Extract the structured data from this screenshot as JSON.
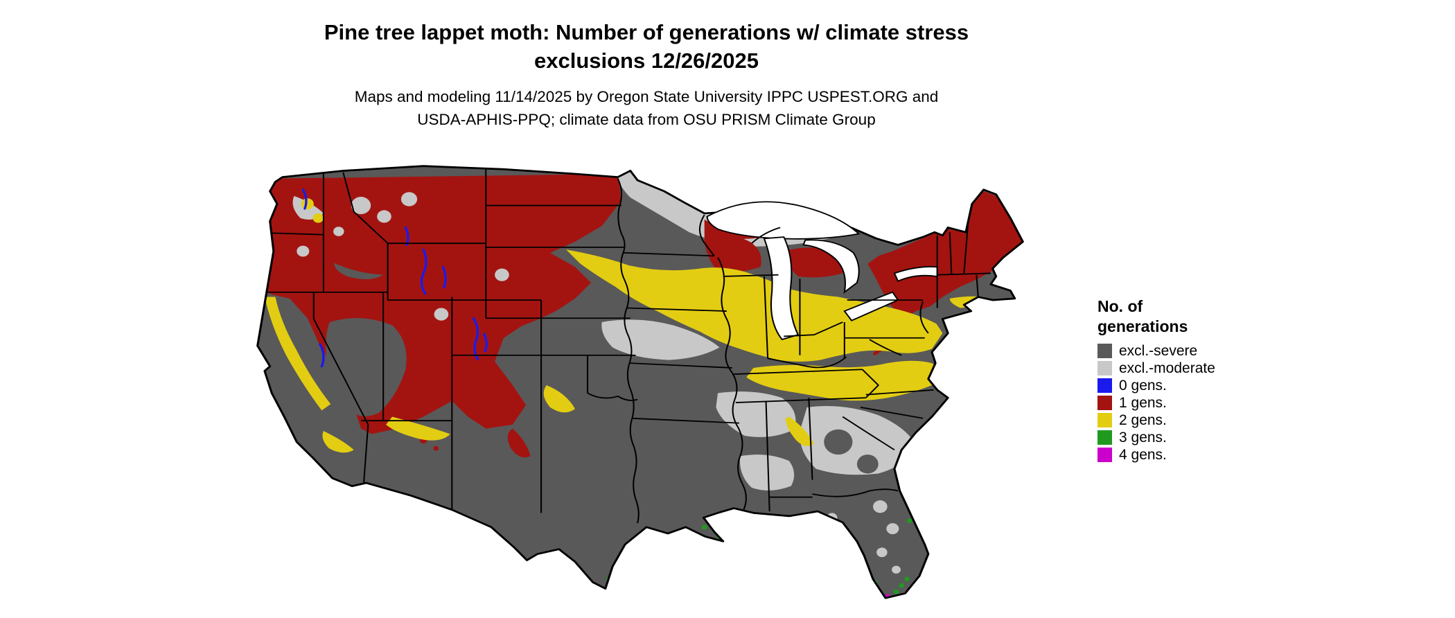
{
  "header": {
    "title_line1": "Pine tree lappet moth: Number of generations w/ climate stress",
    "title_line2": "exclusions 12/26/2025",
    "subtitle_line1": "Maps and modeling 11/14/2025 by Oregon State University IPPC USPEST.ORG and",
    "subtitle_line2": "USDA-APHIS-PPQ; climate data from OSU PRISM Climate Group"
  },
  "legend": {
    "title_line1": "No. of",
    "title_line2": "generations",
    "items": [
      {
        "label": "excl.-severe",
        "key": "severe",
        "color": "#595959"
      },
      {
        "label": "excl.-moderate",
        "key": "moderate",
        "color": "#c8c8c8"
      },
      {
        "label": "0 gens.",
        "key": "g0",
        "color": "#1a1aee"
      },
      {
        "label": "1 gens.",
        "key": "g1",
        "color": "#a31411"
      },
      {
        "label": "2 gens.",
        "key": "g2",
        "color": "#e3cd12"
      },
      {
        "label": "3 gens.",
        "key": "g3",
        "color": "#1f9a1f"
      },
      {
        "label": "4 gens.",
        "key": "g4",
        "color": "#cc00cc"
      }
    ]
  }
}
